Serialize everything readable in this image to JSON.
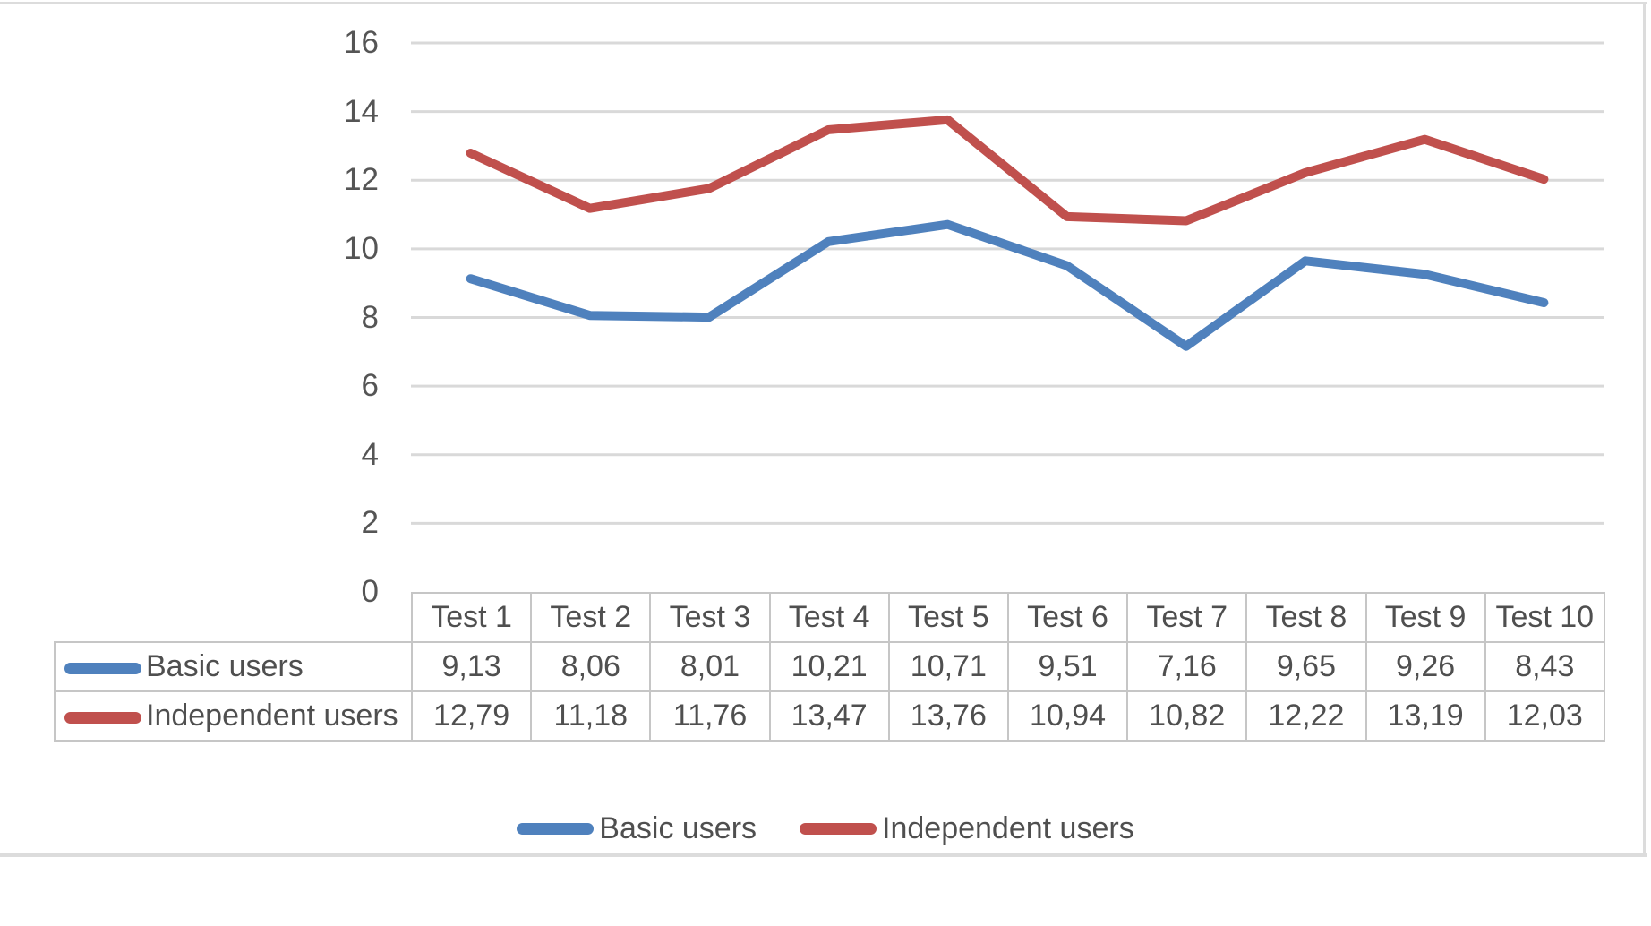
{
  "chart_data": {
    "type": "line",
    "title": "",
    "xlabel": "",
    "ylabel": "",
    "categories": [
      "Test 1",
      "Test 2",
      "Test 3",
      "Test 4",
      "Test 5",
      "Test 6",
      "Test 7",
      "Test 8",
      "Test 9",
      "Test 10"
    ],
    "series": [
      {
        "name": "Basic users",
        "color": "#4F81BD",
        "values": [
          9.13,
          8.06,
          8.01,
          10.21,
          10.71,
          9.51,
          7.16,
          9.65,
          9.26,
          8.43
        ],
        "display_values": [
          "9,13",
          "8,06",
          "8,01",
          "10,21",
          "10,71",
          "9,51",
          "7,16",
          "9,65",
          "9,26",
          "8,43"
        ]
      },
      {
        "name": "Independent users",
        "color": "#C0504D",
        "values": [
          12.79,
          11.18,
          11.76,
          13.47,
          13.76,
          10.94,
          10.82,
          12.22,
          13.19,
          12.03
        ],
        "display_values": [
          "12,79",
          "11,18",
          "11,76",
          "13,47",
          "13,76",
          "10,94",
          "10,82",
          "12,22",
          "13,19",
          "12,03"
        ]
      }
    ],
    "ylim": [
      0,
      16
    ],
    "yticks": [
      0,
      2,
      4,
      6,
      8,
      10,
      12,
      14,
      16
    ],
    "grid": "horizontal-only",
    "legend_position": "bottom",
    "data_table_shown": true
  },
  "colors": {
    "grid_line": "#D9D9D9",
    "table_border": "#C6C6C6",
    "axis_text": "#555555",
    "frame_border": "#DCDCDC",
    "background": "#FFFFFF"
  }
}
